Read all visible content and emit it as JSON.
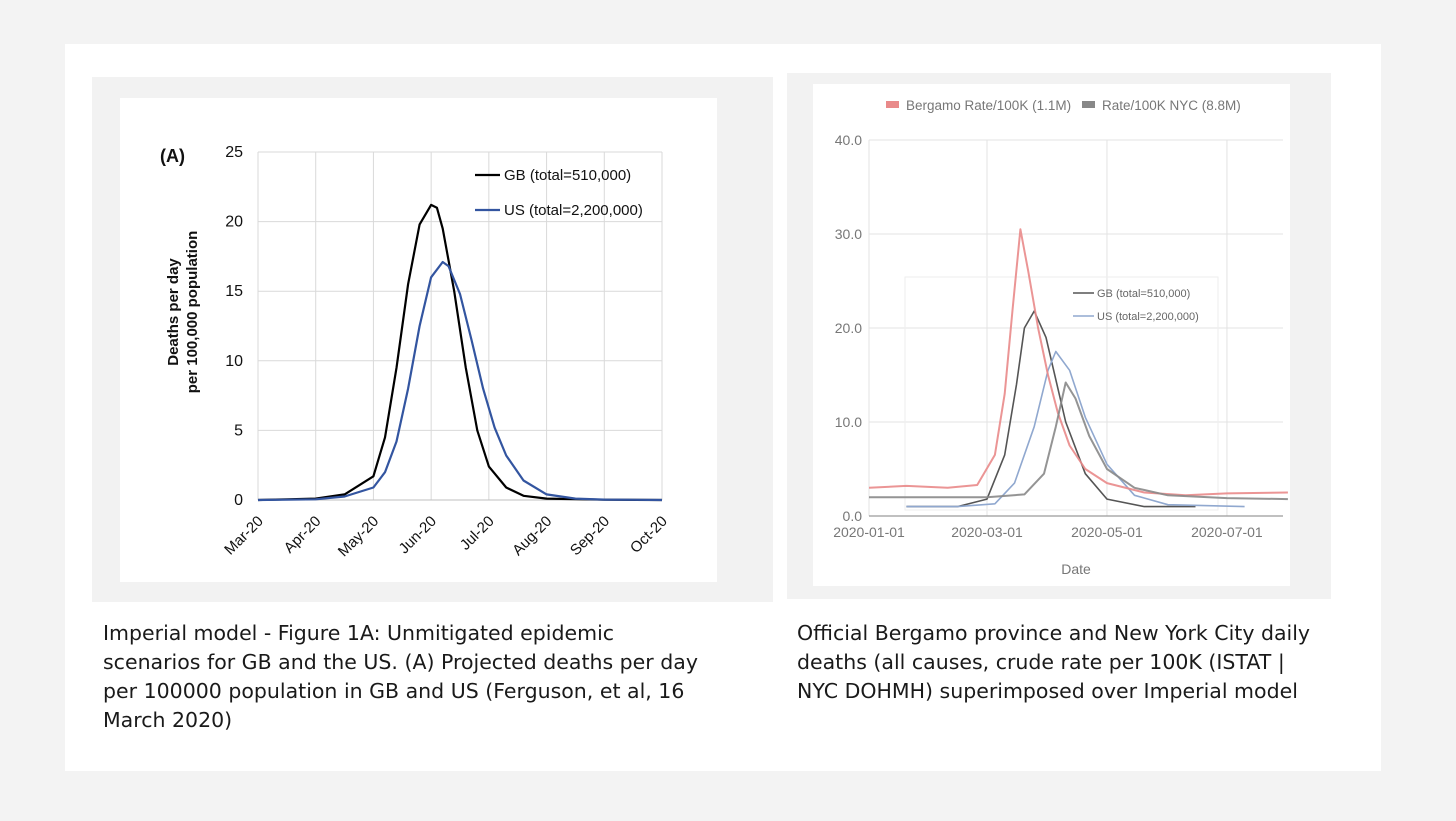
{
  "chart_data": [
    {
      "type": "line",
      "panel_label": "(A)",
      "title": "",
      "xlabel": "",
      "ylabel_line1": "Deaths per day",
      "ylabel_line2": "per 100,000 population",
      "x_tick_labels": [
        "Mar-20",
        "Apr-20",
        "May-20",
        "Jun-20",
        "Jul-20",
        "Aug-20",
        "Sep-20",
        "Oct-20"
      ],
      "y_tick_labels": [
        "0",
        "5",
        "10",
        "15",
        "20",
        "25"
      ],
      "ylim": [
        0,
        25
      ],
      "grid": true,
      "legend_position": "top-right",
      "series": [
        {
          "name": "GB (total=510,000)",
          "color": "#000000",
          "x_month_index": [
            0,
            0.5,
            1,
            1.5,
            2,
            2.2,
            2.4,
            2.6,
            2.8,
            3.0,
            3.1,
            3.2,
            3.4,
            3.6,
            3.8,
            4.0,
            4.3,
            4.6,
            5,
            6,
            7
          ],
          "values": [
            0,
            0.05,
            0.1,
            0.4,
            1.7,
            4.5,
            9.5,
            15.5,
            19.8,
            21.2,
            21.0,
            19.5,
            15.0,
            9.5,
            5.0,
            2.4,
            0.9,
            0.3,
            0.1,
            0.02,
            0
          ]
        },
        {
          "name": "US (total=2,200,000)",
          "color": "#3355a0",
          "x_month_index": [
            0,
            0.5,
            1,
            1.5,
            2,
            2.2,
            2.4,
            2.6,
            2.8,
            3.0,
            3.2,
            3.3,
            3.5,
            3.7,
            3.9,
            4.1,
            4.3,
            4.6,
            5,
            5.5,
            6,
            7
          ],
          "values": [
            0,
            0.02,
            0.05,
            0.25,
            0.9,
            2.0,
            4.2,
            8.0,
            12.5,
            16.0,
            17.1,
            16.8,
            14.8,
            11.5,
            8.0,
            5.2,
            3.2,
            1.4,
            0.4,
            0.1,
            0.03,
            0
          ]
        }
      ]
    },
    {
      "type": "line",
      "title": "",
      "xlabel": "Date",
      "ylabel": "",
      "x_tick_labels": [
        "2020-01-01",
        "2020-03-01",
        "2020-05-01",
        "2020-07-01"
      ],
      "y_tick_labels": [
        "0.0",
        "10.0",
        "20.0",
        "30.0",
        "40.0"
      ],
      "ylim": [
        0,
        40
      ],
      "grid": true,
      "legend_position": "top",
      "series": [
        {
          "name": "Bergamo Rate/100K (1.1M)",
          "color": "#e98a8a",
          "x": [
            "2020-01-01",
            "2020-01-20",
            "2020-02-10",
            "2020-02-25",
            "2020-03-05",
            "2020-03-10",
            "2020-03-14",
            "2020-03-18",
            "2020-03-22",
            "2020-03-27",
            "2020-04-01",
            "2020-04-06",
            "2020-04-12",
            "2020-04-20",
            "2020-05-01",
            "2020-05-20",
            "2020-06-10",
            "2020-07-01",
            "2020-08-01"
          ],
          "values": [
            3.0,
            3.2,
            3.0,
            3.3,
            6.5,
            13,
            22,
            30.5,
            26,
            20,
            15,
            11,
            7.5,
            5,
            3.5,
            2.5,
            2.2,
            2.4,
            2.5
          ]
        },
        {
          "name": "Rate/100K NYC (8.8M)",
          "color": "#888888",
          "x": [
            "2020-01-01",
            "2020-02-01",
            "2020-03-01",
            "2020-03-20",
            "2020-03-30",
            "2020-04-05",
            "2020-04-10",
            "2020-04-15",
            "2020-04-22",
            "2020-05-01",
            "2020-05-15",
            "2020-06-01",
            "2020-07-01",
            "2020-08-01"
          ],
          "values": [
            2.0,
            2.0,
            2.0,
            2.3,
            4.5,
            9.5,
            14.2,
            12.5,
            8.5,
            5.0,
            3.0,
            2.2,
            1.9,
            1.8
          ]
        }
      ],
      "overlay": {
        "series": [
          {
            "name": "GB (total=510,000)",
            "color": "#555555",
            "x": [
              "2020-01-20",
              "2020-02-15",
              "2020-03-01",
              "2020-03-10",
              "2020-03-16",
              "2020-03-20",
              "2020-03-25",
              "2020-03-31",
              "2020-04-10",
              "2020-04-20",
              "2020-05-01",
              "2020-05-20",
              "2020-06-15"
            ],
            "values": [
              1.0,
              1.0,
              1.8,
              6.5,
              14,
              20,
              21.8,
              19,
              10,
              4.5,
              1.8,
              1.0,
              1.0
            ]
          },
          {
            "name": "US (total=2,200,000)",
            "color": "#90a8cf",
            "x": [
              "2020-01-20",
              "2020-02-15",
              "2020-03-05",
              "2020-03-15",
              "2020-03-25",
              "2020-04-01",
              "2020-04-05",
              "2020-04-12",
              "2020-04-20",
              "2020-05-01",
              "2020-05-15",
              "2020-06-01",
              "2020-07-10"
            ],
            "values": [
              1.0,
              1.0,
              1.3,
              3.5,
              9.5,
              15.5,
              17.5,
              15.5,
              10.5,
              5.5,
              2.2,
              1.2,
              1.0
            ]
          }
        ]
      }
    }
  ],
  "captions": {
    "left_lines": [
      "Imperial model - Figure 1A: Unmitigated epidemic",
      "scenarios for GB and the US. (A) Projected deaths per day",
      "per 100000 population in GB and US (Ferguson, et al, 16",
      "March 2020)"
    ],
    "right_lines": [
      "Official Bergamo province and New York City daily",
      "deaths (all causes, crude rate per 100K (ISTAT |",
      "NYC DOHMH) superimposed over Imperial model"
    ]
  }
}
